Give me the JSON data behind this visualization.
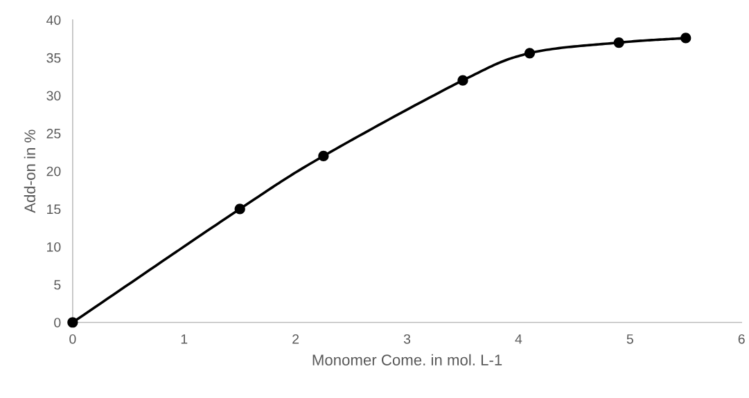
{
  "chart_data": {
    "type": "line",
    "xlabel": "Monomer Come. in mol. L-1",
    "ylabel": "Add-on in %",
    "x": [
      0,
      1.5,
      2.25,
      3.5,
      4.1,
      4.9,
      5.5
    ],
    "series": [
      {
        "color": "#000000",
        "values": [
          0,
          15,
          22,
          32,
          35.6,
          37,
          37.6
        ]
      }
    ],
    "xlim": [
      0,
      6
    ],
    "xticks": [
      0,
      1,
      2,
      3,
      4,
      5,
      6
    ],
    "ylim": [
      0,
      40
    ],
    "yticks": [
      0,
      5,
      10,
      15,
      20,
      25,
      30,
      35,
      40
    ],
    "marker": "circle",
    "line_style": "solid",
    "grid": false,
    "legend": false
  }
}
